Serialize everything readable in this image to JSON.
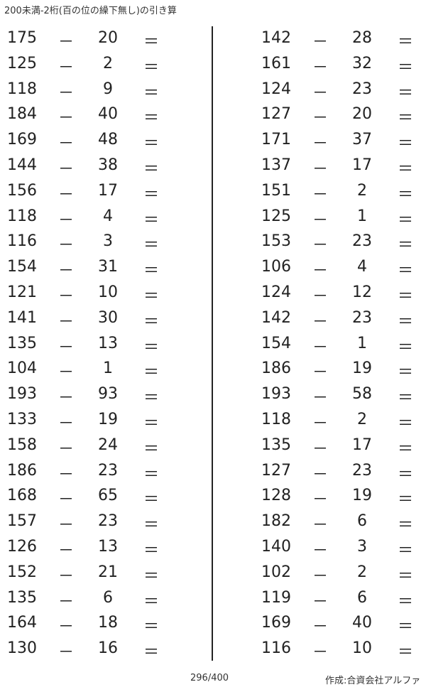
{
  "title": "200未満-2桁(百の位の繰下無し)の引き算",
  "operator": "－",
  "equals": "＝",
  "left_problems": [
    [
      "175",
      "20"
    ],
    [
      "125",
      "2"
    ],
    [
      "118",
      "9"
    ],
    [
      "184",
      "40"
    ],
    [
      "169",
      "48"
    ],
    [
      "144",
      "38"
    ],
    [
      "156",
      "17"
    ],
    [
      "118",
      "4"
    ],
    [
      "116",
      "3"
    ],
    [
      "154",
      "31"
    ],
    [
      "121",
      "10"
    ],
    [
      "141",
      "30"
    ],
    [
      "135",
      "13"
    ],
    [
      "104",
      "1"
    ],
    [
      "193",
      "93"
    ],
    [
      "133",
      "19"
    ],
    [
      "158",
      "24"
    ],
    [
      "186",
      "23"
    ],
    [
      "168",
      "65"
    ],
    [
      "157",
      "23"
    ],
    [
      "126",
      "13"
    ],
    [
      "152",
      "21"
    ],
    [
      "135",
      "6"
    ],
    [
      "164",
      "18"
    ],
    [
      "130",
      "16"
    ]
  ],
  "right_problems": [
    [
      "142",
      "28"
    ],
    [
      "161",
      "32"
    ],
    [
      "124",
      "23"
    ],
    [
      "127",
      "20"
    ],
    [
      "171",
      "37"
    ],
    [
      "137",
      "17"
    ],
    [
      "151",
      "2"
    ],
    [
      "125",
      "1"
    ],
    [
      "153",
      "23"
    ],
    [
      "106",
      "4"
    ],
    [
      "124",
      "12"
    ],
    [
      "142",
      "23"
    ],
    [
      "154",
      "1"
    ],
    [
      "186",
      "19"
    ],
    [
      "193",
      "58"
    ],
    [
      "118",
      "2"
    ],
    [
      "135",
      "17"
    ],
    [
      "127",
      "23"
    ],
    [
      "128",
      "19"
    ],
    [
      "182",
      "6"
    ],
    [
      "140",
      "3"
    ],
    [
      "102",
      "2"
    ],
    [
      "119",
      "6"
    ],
    [
      "169",
      "40"
    ],
    [
      "116",
      "10"
    ]
  ],
  "footer": {
    "page": "296/400",
    "credit": "作成:合資会社アルファ"
  }
}
